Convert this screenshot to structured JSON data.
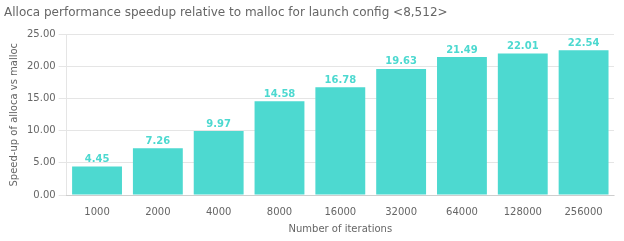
{
  "chart_data": {
    "type": "bar",
    "title": "Alloca performance speedup relative to malloc for launch config <8,512>",
    "xlabel": "Number of iterations",
    "ylabel": "Speed-up of alloca vs malloc",
    "categories": [
      "1000",
      "2000",
      "4000",
      "8000",
      "16000",
      "32000",
      "64000",
      "128000",
      "256000"
    ],
    "values": [
      4.45,
      7.26,
      9.97,
      14.58,
      16.78,
      19.63,
      21.49,
      22.01,
      22.54
    ],
    "color": "#4DD9D0",
    "ylim": [
      0,
      25.0
    ],
    "yticks": [
      {
        "value": 0,
        "label": "0.00"
      },
      {
        "value": 5,
        "label": "5.00"
      },
      {
        "value": 10,
        "label": "10.00"
      },
      {
        "value": 15,
        "label": "15.00"
      },
      {
        "value": 20,
        "label": "20.00"
      },
      {
        "value": 25,
        "label": "25.00"
      }
    ],
    "grid": true,
    "data_labels": true
  }
}
